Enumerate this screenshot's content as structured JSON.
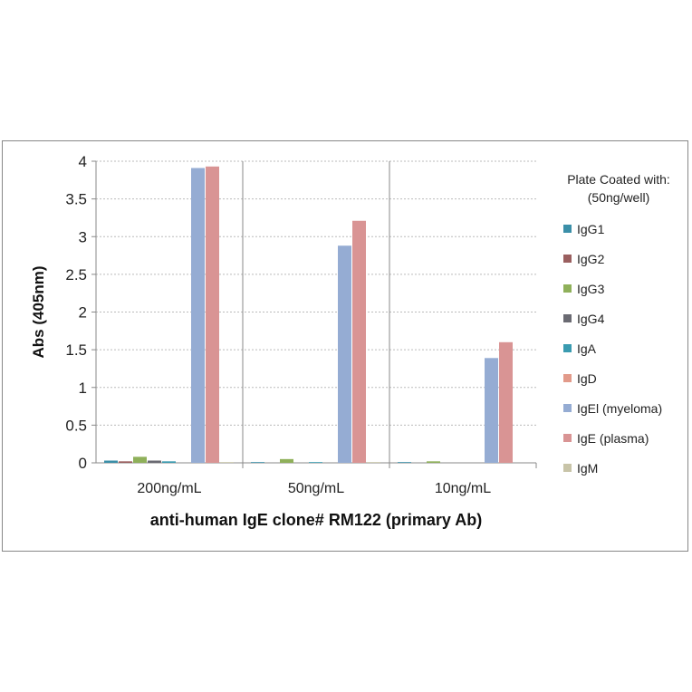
{
  "chart_data": {
    "type": "bar",
    "xlabel": "anti-human IgE clone# RM122 (primary Ab)",
    "ylabel": "Abs (405nm)",
    "ylim": [
      0,
      4
    ],
    "yticks": [
      "0",
      "0.5",
      "1",
      "1.5",
      "2",
      "2.5",
      "3",
      "3.5",
      "4"
    ],
    "categories": [
      "200ng/mL",
      "50ng/mL",
      "10ng/mL"
    ],
    "legend_title": [
      "Plate Coated with:",
      "(50ng/well)"
    ],
    "legend_position": "right",
    "series": [
      {
        "name": "IgG1",
        "color": "#3b8fa8",
        "values": [
          0.03,
          0.01,
          0.01
        ]
      },
      {
        "name": "IgG2",
        "color": "#9a5f5f",
        "values": [
          0.02,
          0.0,
          0.0
        ]
      },
      {
        "name": "IgG3",
        "color": "#8fb05a",
        "values": [
          0.08,
          0.05,
          0.02
        ]
      },
      {
        "name": "IgG4",
        "color": "#6a6a72",
        "values": [
          0.03,
          0.0,
          0.0
        ]
      },
      {
        "name": "IgA",
        "color": "#3a9bb0",
        "values": [
          0.02,
          0.01,
          0.0
        ]
      },
      {
        "name": "IgD",
        "color": "#e29a8a",
        "values": [
          0.0,
          0.0,
          0.0
        ]
      },
      {
        "name": "IgEl (myeloma)",
        "color": "#95acd3",
        "values": [
          3.91,
          2.88,
          1.39
        ]
      },
      {
        "name": "IgE (plasma)",
        "color": "#d99494",
        "values": [
          3.93,
          3.21,
          1.6
        ]
      },
      {
        "name": "IgM",
        "color": "#c8c4a8",
        "values": [
          0.01,
          0.01,
          0.0
        ]
      }
    ]
  }
}
